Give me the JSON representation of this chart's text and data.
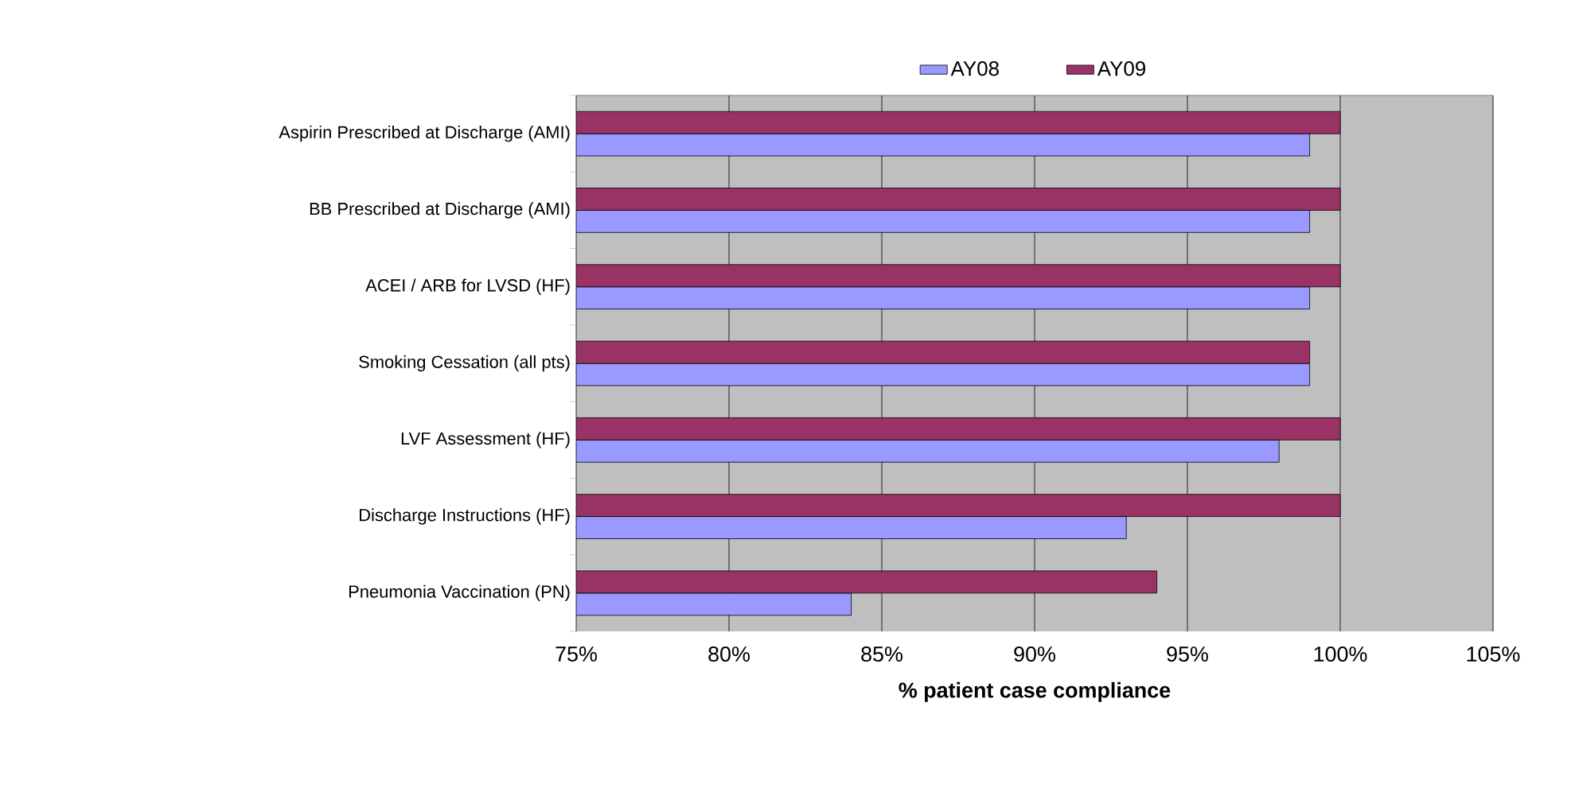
{
  "chart_data": {
    "type": "bar",
    "orientation": "horizontal",
    "xlabel": "% patient case compliance",
    "categories": [
      "Aspirin Prescribed at Discharge  (AMI)",
      "BB Prescribed at Discharge (AMI)",
      "ACEI / ARB for LVSD (HF)",
      "Smoking Cessation (all pts)",
      "LVF Assessment (HF)",
      "Discharge Instructions (HF)",
      "Pneumonia Vaccination (PN)"
    ],
    "series": [
      {
        "name": "AY08",
        "color": "#9999ff",
        "values": [
          99,
          99,
          99,
          99,
          98,
          93,
          84
        ]
      },
      {
        "name": "AY09",
        "color": "#993366",
        "values": [
          100,
          100,
          100,
          99,
          100,
          100,
          94
        ]
      }
    ],
    "xlim": [
      75,
      105
    ],
    "xticks": [
      {
        "value": 75,
        "label": "75%"
      },
      {
        "value": 80,
        "label": "80%"
      },
      {
        "value": 85,
        "label": "85%"
      },
      {
        "value": 90,
        "label": "90%"
      },
      {
        "value": 95,
        "label": "95%"
      },
      {
        "value": 100,
        "label": "100%"
      },
      {
        "value": 105,
        "label": "105%"
      }
    ],
    "grid": "x",
    "legend": "top"
  }
}
